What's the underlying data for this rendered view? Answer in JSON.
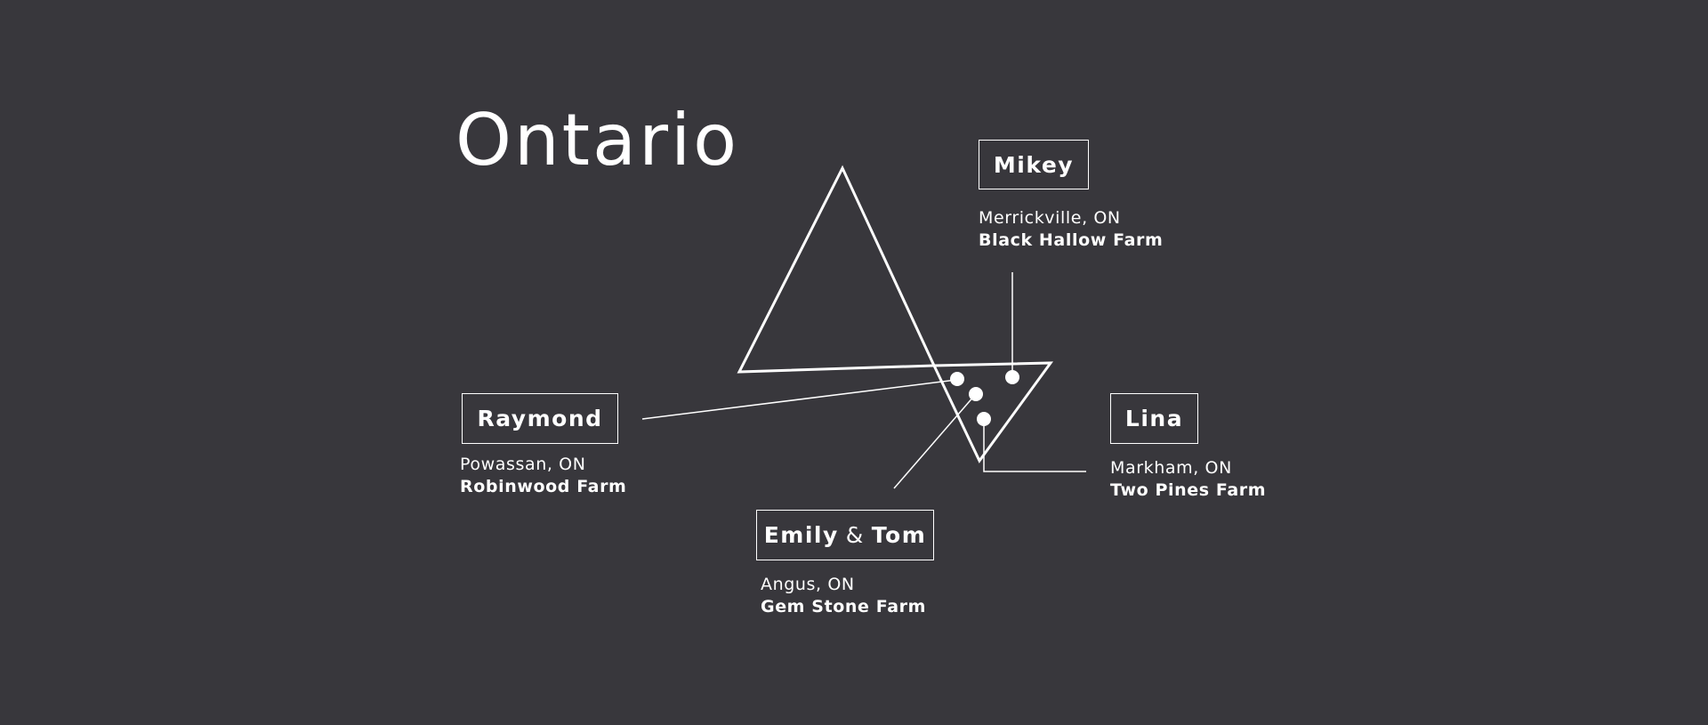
{
  "title": "Ontario",
  "colors": {
    "background": "#38373c",
    "foreground": "#ffffff"
  },
  "markers": {
    "mikey": {
      "name": "Mikey",
      "town": "Merrickville, ON",
      "farm": "Black Hallow Farm"
    },
    "raymond": {
      "name": "Raymond",
      "town": "Powassan, ON",
      "farm": "Robinwood Farm"
    },
    "lina": {
      "name": "Lina",
      "town": "Markham, ON",
      "farm": "Two Pines Farm"
    },
    "emily_tom": {
      "name_a": "Emily",
      "amp": "&",
      "name_b": "Tom",
      "town": "Angus, ON",
      "farm": "Gem Stone Farm"
    }
  }
}
